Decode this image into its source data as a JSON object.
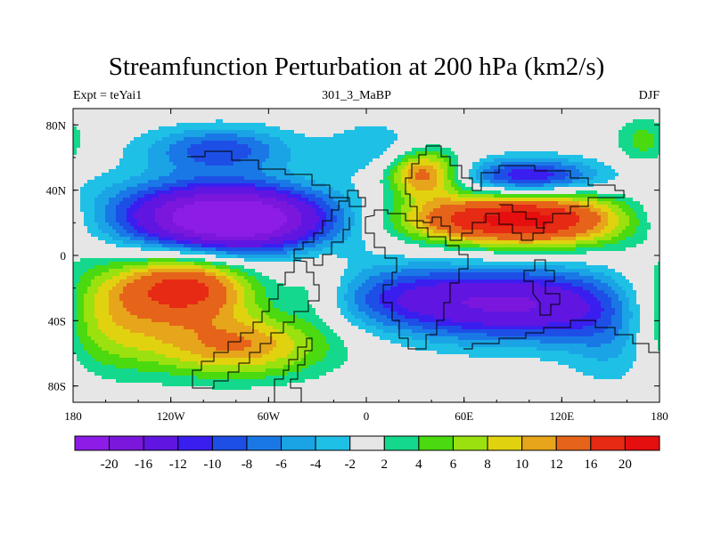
{
  "chart_data": {
    "type": "heatmap",
    "title": "Streamfunction Perturbation at 200 hPa (km2/s)",
    "subtitle_left": "Expt = teYai1",
    "subtitle_center": "301_3_MaBP",
    "subtitle_right": "DJF",
    "x_ticks": [
      {
        "value": -180,
        "label": "180"
      },
      {
        "value": -120,
        "label": "120W"
      },
      {
        "value": -60,
        "label": "60W"
      },
      {
        "value": 0,
        "label": "0"
      },
      {
        "value": 60,
        "label": "60E"
      },
      {
        "value": 120,
        "label": "120E"
      },
      {
        "value": 180,
        "label": "180"
      }
    ],
    "y_ticks": [
      {
        "value": 80,
        "label": "80N"
      },
      {
        "value": 40,
        "label": "40N"
      },
      {
        "value": 0,
        "label": "0"
      },
      {
        "value": -40,
        "label": "40S"
      },
      {
        "value": -80,
        "label": "80S"
      }
    ],
    "xlim": [
      -180,
      180
    ],
    "ylim": [
      -90,
      90
    ],
    "levels": [
      -20,
      -16,
      -12,
      -10,
      -8,
      -6,
      -4,
      -2,
      2,
      4,
      6,
      8,
      10,
      12,
      16,
      20
    ],
    "level_labels": [
      "-20",
      "-16",
      "-12",
      "-10",
      "-8",
      "-6",
      "-4",
      "-2",
      "2",
      "4",
      "6",
      "8",
      "10",
      "12",
      "16",
      "20"
    ],
    "colors": [
      "#8c1ce6",
      "#7b17dc",
      "#6016e0",
      "#3a1ef0",
      "#1d4fe6",
      "#1a78e6",
      "#1aa4e6",
      "#1fc0e6",
      "#e6e6e6",
      "#14d98c",
      "#4bd90f",
      "#9be10f",
      "#e1d20f",
      "#e6a51a",
      "#e6641a",
      "#e62a14",
      "#e60f0f"
    ],
    "field_centers": [
      {
        "lon": -75,
        "lat": 22,
        "amp": -21.0,
        "sx": 40,
        "sy": 14
      },
      {
        "lon": -115,
        "lat": 25,
        "amp": -9.0,
        "sx": 45,
        "sy": 16
      },
      {
        "lon": -90,
        "lat": 65,
        "amp": -9.0,
        "sx": 32,
        "sy": 10
      },
      {
        "lon": 105,
        "lat": 22,
        "amp": 20.0,
        "sx": 40,
        "sy": 12
      },
      {
        "lon": 50,
        "lat": 22,
        "amp": 8.0,
        "sx": 30,
        "sy": 10
      },
      {
        "lon": 35,
        "lat": 50,
        "amp": 14.0,
        "sx": 16,
        "sy": 10
      },
      {
        "lon": 100,
        "lat": 48,
        "amp": -13.0,
        "sx": 30,
        "sy": 8
      },
      {
        "lon": 95,
        "lat": -30,
        "amp": -16.0,
        "sx": 55,
        "sy": 16
      },
      {
        "lon": 20,
        "lat": -25,
        "amp": -6.0,
        "sx": 35,
        "sy": 14
      },
      {
        "lon": -110,
        "lat": -20,
        "amp": 17.0,
        "sx": 28,
        "sy": 14
      },
      {
        "lon": -80,
        "lat": -55,
        "amp": 12.0,
        "sx": 40,
        "sy": 14
      },
      {
        "lon": -165,
        "lat": -35,
        "amp": 10.0,
        "sx": 30,
        "sy": 22
      },
      {
        "lon": -30,
        "lat": -20,
        "amp": 4.0,
        "sx": 14,
        "sy": 16
      },
      {
        "lon": 170,
        "lat": 70,
        "amp": 5.0,
        "sx": 12,
        "sy": 10
      },
      {
        "lon": 155,
        "lat": -55,
        "amp": -5.0,
        "sx": 22,
        "sy": 18
      },
      {
        "lon": 5,
        "lat": 65,
        "amp": -4.0,
        "sx": 20,
        "sy": 12
      }
    ]
  }
}
